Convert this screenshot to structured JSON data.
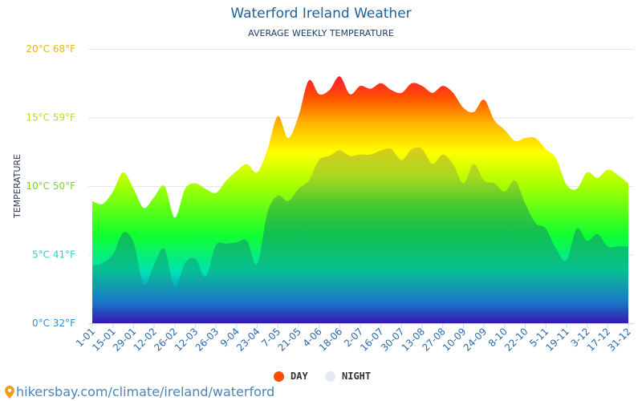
{
  "title": "Waterford Ireland Weather",
  "subtitle": "AVERAGE WEEKLY TEMPERATURE",
  "footer": {
    "url": "hikersbay.com/climate/ireland/waterford",
    "icon": "map-pin-icon"
  },
  "chart_data": {
    "type": "area",
    "title": "Waterford Ireland Weather",
    "subtitle": "AVERAGE WEEKLY TEMPERATURE",
    "ylabel": "TEMPERATURE",
    "xlabel": "",
    "ylim": [
      0,
      20
    ],
    "grid": true,
    "legend_position": "bottom",
    "y_ticks": [
      {
        "value": 0,
        "label": "0°C 32°F",
        "color": "#2a8fd8"
      },
      {
        "value": 5,
        "label": "5°C 41°F",
        "color": "#22d3c0"
      },
      {
        "value": 10,
        "label": "10°C 50°F",
        "color": "#7ad61c"
      },
      {
        "value": 15,
        "label": "15°C 59°F",
        "color": "#c3d61a"
      },
      {
        "value": 20,
        "label": "20°C 68°F",
        "color": "#e8b800"
      }
    ],
    "x_tick_labels": [
      "1-01",
      "15-01",
      "29-01",
      "12-02",
      "26-02",
      "12-03",
      "26-03",
      "9-04",
      "23-04",
      "7-05",
      "21-05",
      "4-06",
      "18-06",
      "2-07",
      "16-07",
      "30-07",
      "13-08",
      "27-08",
      "10-09",
      "24-09",
      "8-10",
      "22-10",
      "5-11",
      "19-11",
      "3-12",
      "17-12",
      "31-12"
    ],
    "series": [
      {
        "name": "DAY",
        "color": "#ff4d00",
        "values": [
          8.9,
          8.7,
          9.6,
          11.0,
          9.8,
          8.4,
          9.2,
          10.0,
          7.7,
          9.8,
          10.2,
          9.8,
          9.5,
          10.4,
          11.1,
          11.6,
          11.0,
          12.7,
          15.1,
          13.5,
          15.1,
          17.7,
          16.7,
          17.0,
          18.0,
          16.7,
          17.3,
          17.1,
          17.5,
          17.0,
          16.8,
          17.5,
          17.3,
          16.8,
          17.3,
          16.8,
          15.7,
          15.4,
          16.3,
          14.8,
          14.1,
          13.3,
          13.5,
          13.5,
          12.7,
          12.0,
          10.1,
          9.8,
          11.0,
          10.6,
          11.2,
          10.8,
          10.2
        ]
      },
      {
        "name": "NIGHT",
        "color": "#e3eaf0",
        "values": [
          4.2,
          4.4,
          5.0,
          6.6,
          5.9,
          2.8,
          4.3,
          5.4,
          2.6,
          4.4,
          4.7,
          3.4,
          5.7,
          5.8,
          5.9,
          6.0,
          4.3,
          8.1,
          9.3,
          8.9,
          9.8,
          10.4,
          11.9,
          12.2,
          12.6,
          12.2,
          12.3,
          12.3,
          12.6,
          12.7,
          11.9,
          12.7,
          12.7,
          11.6,
          12.3,
          11.6,
          10.2,
          11.6,
          10.4,
          10.2,
          9.6,
          10.4,
          8.7,
          7.3,
          6.9,
          5.4,
          4.6,
          6.9,
          6.0,
          6.5,
          5.6,
          5.6,
          5.6
        ]
      }
    ]
  }
}
